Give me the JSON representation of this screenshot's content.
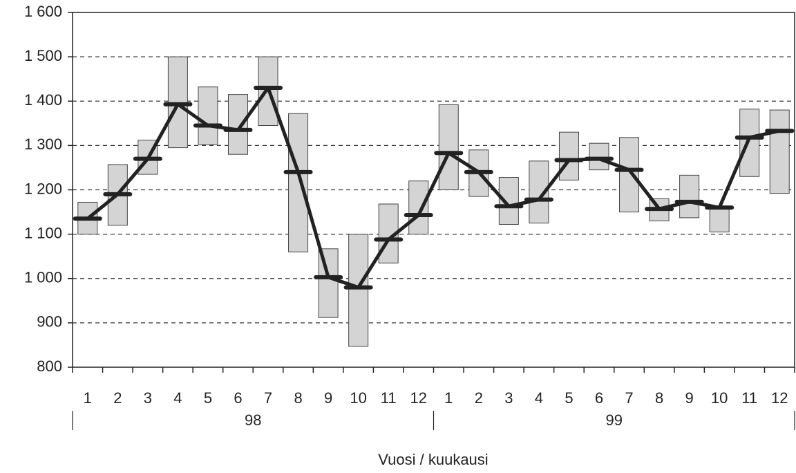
{
  "chart_data": {
    "type": "range_line",
    "x_label": "Vuosi / kuukausi",
    "categories": [
      "1",
      "2",
      "3",
      "4",
      "5",
      "6",
      "7",
      "8",
      "9",
      "10",
      "11",
      "12",
      "1",
      "2",
      "3",
      "4",
      "5",
      "6",
      "7",
      "8",
      "9",
      "10",
      "11",
      "12"
    ],
    "groups": [
      "98",
      "99"
    ],
    "series": [
      {
        "type": "range",
        "color": "#d4d4d4",
        "low": [
          1100,
          1120,
          1235,
          1295,
          1302,
          1280,
          1345,
          1060,
          912,
          847,
          1035,
          1100,
          1200,
          1185,
          1122,
          1125,
          1222,
          1245,
          1150,
          1130,
          1137,
          1105,
          1230,
          1192
        ],
        "high": [
          1172,
          1257,
          1312,
          1500,
          1432,
          1415,
          1500,
          1372,
          1067,
          1100,
          1168,
          1220,
          1392,
          1290,
          1228,
          1265,
          1330,
          1305,
          1318,
          1180,
          1233,
          1160,
          1382,
          1380
        ]
      },
      {
        "type": "line",
        "color": "#222222",
        "values": [
          1135,
          1190,
          1270,
          1393,
          1345,
          1335,
          1430,
          1240,
          1003,
          980,
          1088,
          1143,
          1283,
          1240,
          1163,
          1178,
          1267,
          1270,
          1245,
          1157,
          1173,
          1160,
          1318,
          1333
        ]
      }
    ],
    "ylim": [
      800,
      1600
    ],
    "yticks": [
      800,
      900,
      {
        "value": 1000,
        "label": "1 000"
      },
      {
        "value": 1100,
        "label": "1 100"
      },
      {
        "value": 1200,
        "label": "1 200"
      },
      {
        "value": 1300,
        "label": "1 300"
      },
      {
        "value": 1400,
        "label": "1 400"
      },
      {
        "value": 1500,
        "label": "1 500"
      },
      {
        "value": 1600,
        "label": "1 600"
      }
    ],
    "grid": true
  }
}
